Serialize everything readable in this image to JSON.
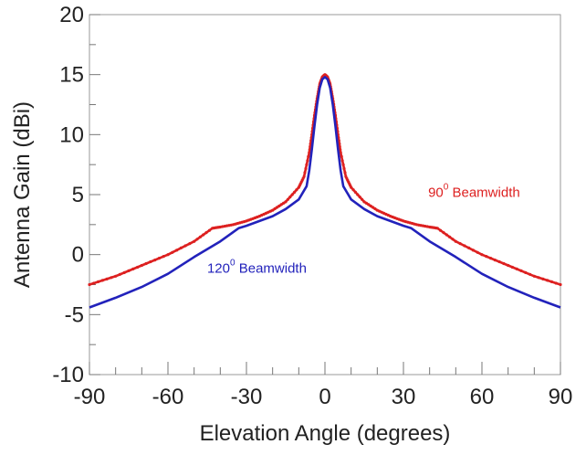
{
  "chart_data": {
    "type": "line",
    "title": "",
    "xlabel": "Elevation Angle (degrees)",
    "ylabel": "Antenna Gain (dBi)",
    "xlim": [
      -90,
      90
    ],
    "ylim": [
      -10,
      20
    ],
    "xticks": [
      -90,
      -60,
      -30,
      0,
      30,
      60,
      90
    ],
    "yticks": [
      -10,
      -5,
      0,
      5,
      10,
      15,
      20
    ],
    "grid": false,
    "legend": "none",
    "series": [
      {
        "name": "90 Beamwidth",
        "color": "#dd2020",
        "markers": true,
        "x": [
          -90,
          -80,
          -70,
          -60,
          -50,
          -43,
          -40,
          -35,
          -30,
          -25,
          -20,
          -15,
          -10,
          -8,
          -6,
          -5,
          -4,
          -3,
          -2,
          -1,
          0,
          1,
          2,
          3,
          4,
          5,
          6,
          8,
          10,
          15,
          20,
          25,
          30,
          35,
          40,
          43,
          50,
          60,
          70,
          80,
          90
        ],
        "y": [
          -2.5,
          -1.8,
          -0.9,
          0.0,
          1.1,
          2.2,
          2.3,
          2.5,
          2.8,
          3.2,
          3.7,
          4.4,
          5.6,
          6.5,
          8.5,
          10.0,
          11.6,
          13.0,
          14.2,
          14.8,
          15.0,
          14.8,
          14.2,
          13.0,
          11.6,
          10.0,
          8.5,
          6.5,
          5.6,
          4.4,
          3.7,
          3.2,
          2.8,
          2.5,
          2.3,
          2.2,
          1.1,
          0.0,
          -0.9,
          -1.8,
          -2.5
        ]
      },
      {
        "name": "120 Beamwidth",
        "color": "#2222bb",
        "markers": false,
        "x": [
          -90,
          -80,
          -70,
          -60,
          -50,
          -40,
          -33,
          -30,
          -25,
          -20,
          -15,
          -10,
          -7,
          -6,
          -5,
          -4,
          -3,
          -2,
          -1,
          0,
          1,
          2,
          3,
          4,
          5,
          6,
          7,
          10,
          15,
          20,
          25,
          30,
          33,
          40,
          50,
          60,
          70,
          80,
          90
        ],
        "y": [
          -4.4,
          -3.6,
          -2.7,
          -1.6,
          -0.2,
          1.1,
          2.2,
          2.4,
          2.8,
          3.2,
          3.8,
          4.6,
          5.7,
          7.0,
          8.8,
          10.7,
          12.5,
          13.9,
          14.6,
          14.8,
          14.6,
          13.9,
          12.5,
          10.7,
          8.8,
          7.0,
          5.7,
          4.6,
          3.8,
          3.2,
          2.8,
          2.4,
          2.2,
          1.1,
          -0.2,
          -1.6,
          -2.7,
          -3.6,
          -4.4
        ]
      }
    ],
    "annotations": [
      {
        "base": "90",
        "sup": "0",
        "rest": " Beamwidth",
        "x": 57,
        "y": 4.8,
        "color": "#dd2020"
      },
      {
        "base": "120",
        "sup": "0",
        "rest": " Beamwidth",
        "x": -26,
        "y": -1.5,
        "color": "#2222bb"
      }
    ]
  }
}
